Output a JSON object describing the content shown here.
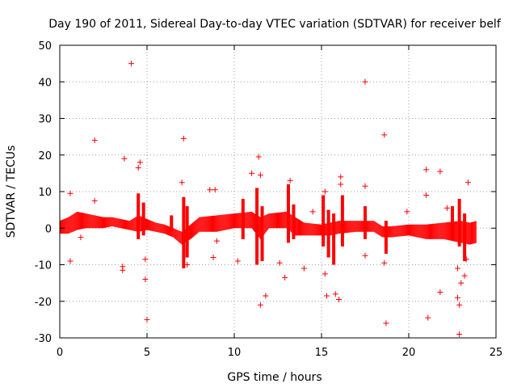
{
  "chart_data": {
    "type": "scatter",
    "title": "Day 190 of 2011, Sidereal Day-to-day VTEC variation (SDTVAR) for receiver belf",
    "xlabel": "GPS time / hours",
    "ylabel": "SDTVAR / TECUs",
    "xlim": [
      0,
      25
    ],
    "ylim": [
      -30,
      50
    ],
    "xticks": [
      0,
      5,
      10,
      15,
      20,
      25
    ],
    "yticks": [
      -30,
      -20,
      -10,
      0,
      10,
      20,
      30,
      40,
      50
    ],
    "grid": true,
    "marker": "+",
    "color": "#ff0000",
    "dense_band": [
      {
        "x": 0.0,
        "lo": -1.5,
        "hi": 2.0
      },
      {
        "x": 0.5,
        "lo": -1.5,
        "hi": 3.0
      },
      {
        "x": 1.0,
        "lo": -0.5,
        "hi": 4.5
      },
      {
        "x": 1.5,
        "lo": 0.0,
        "hi": 4.0
      },
      {
        "x": 2.0,
        "lo": 0.0,
        "hi": 3.5
      },
      {
        "x": 2.5,
        "lo": 0.0,
        "hi": 3.0
      },
      {
        "x": 3.0,
        "lo": 0.5,
        "hi": 3.0
      },
      {
        "x": 3.5,
        "lo": 0.0,
        "hi": 2.5
      },
      {
        "x": 4.0,
        "lo": -0.5,
        "hi": 2.0
      },
      {
        "x": 4.5,
        "lo": -1.0,
        "hi": 3.5
      },
      {
        "x": 5.0,
        "lo": -0.5,
        "hi": 2.5
      },
      {
        "x": 5.5,
        "lo": -1.0,
        "hi": 1.5
      },
      {
        "x": 6.0,
        "lo": -1.5,
        "hi": 1.0
      },
      {
        "x": 6.5,
        "lo": -2.5,
        "hi": 0.0
      },
      {
        "x": 7.0,
        "lo": -4.5,
        "hi": -1.0
      },
      {
        "x": 7.5,
        "lo": -3.0,
        "hi": 1.0
      },
      {
        "x": 8.0,
        "lo": -1.0,
        "hi": 3.0
      },
      {
        "x": 9.0,
        "lo": -1.0,
        "hi": 3.5
      },
      {
        "x": 10.0,
        "lo": 0.0,
        "hi": 4.0
      },
      {
        "x": 11.0,
        "lo": 0.0,
        "hi": 4.5
      },
      {
        "x": 11.5,
        "lo": -3.0,
        "hi": 3.0
      },
      {
        "x": 12.0,
        "lo": 0.0,
        "hi": 4.0
      },
      {
        "x": 13.0,
        "lo": 0.0,
        "hi": 4.5
      },
      {
        "x": 13.5,
        "lo": -2.0,
        "hi": 3.0
      },
      {
        "x": 14.0,
        "lo": -2.0,
        "hi": 1.5
      },
      {
        "x": 15.0,
        "lo": -2.0,
        "hi": 1.0
      },
      {
        "x": 15.5,
        "lo": -2.0,
        "hi": 1.5
      },
      {
        "x": 16.0,
        "lo": -1.5,
        "hi": 2.0
      },
      {
        "x": 17.0,
        "lo": -1.0,
        "hi": 2.0
      },
      {
        "x": 18.0,
        "lo": -1.0,
        "hi": 2.0
      },
      {
        "x": 18.5,
        "lo": -2.5,
        "hi": 0.5
      },
      {
        "x": 19.0,
        "lo": -2.5,
        "hi": 0.5
      },
      {
        "x": 20.0,
        "lo": -2.0,
        "hi": 1.0
      },
      {
        "x": 21.0,
        "lo": -3.0,
        "hi": 1.0
      },
      {
        "x": 22.0,
        "lo": -3.0,
        "hi": 1.5
      },
      {
        "x": 23.0,
        "lo": -4.0,
        "hi": 2.0
      },
      {
        "x": 23.5,
        "lo": -4.5,
        "hi": 1.5
      },
      {
        "x": 23.9,
        "lo": -4.0,
        "hi": 2.0
      }
    ],
    "spikes": [
      {
        "x": 4.5,
        "lo": -3.0,
        "hi": 9.5
      },
      {
        "x": 4.8,
        "lo": -2.0,
        "hi": 7.0
      },
      {
        "x": 6.4,
        "lo": -1.0,
        "hi": 3.5
      },
      {
        "x": 7.1,
        "lo": -11.0,
        "hi": 8.5
      },
      {
        "x": 7.3,
        "lo": -8.0,
        "hi": 6.0
      },
      {
        "x": 10.5,
        "lo": -3.0,
        "hi": 8.0
      },
      {
        "x": 11.3,
        "lo": -10.0,
        "hi": 11.0
      },
      {
        "x": 11.6,
        "lo": -9.0,
        "hi": 6.0
      },
      {
        "x": 13.1,
        "lo": -4.0,
        "hi": 12.0
      },
      {
        "x": 13.4,
        "lo": -3.0,
        "hi": 6.5
      },
      {
        "x": 15.1,
        "lo": -5.0,
        "hi": 9.0
      },
      {
        "x": 15.4,
        "lo": -8.0,
        "hi": 5.0
      },
      {
        "x": 15.7,
        "lo": -10.0,
        "hi": 4.0
      },
      {
        "x": 16.2,
        "lo": -5.0,
        "hi": 9.0
      },
      {
        "x": 17.5,
        "lo": -3.0,
        "hi": 6.0
      },
      {
        "x": 18.7,
        "lo": -7.0,
        "hi": 2.0
      },
      {
        "x": 22.5,
        "lo": -3.0,
        "hi": 6.0
      },
      {
        "x": 22.9,
        "lo": -5.0,
        "hi": 8.0
      },
      {
        "x": 23.2,
        "lo": -9.0,
        "hi": 4.0
      }
    ],
    "outliers": [
      {
        "x": 4.1,
        "y": 45.0
      },
      {
        "x": 17.5,
        "y": 40.0
      },
      {
        "x": 18.6,
        "y": 25.5
      },
      {
        "x": 2.0,
        "y": 24.0
      },
      {
        "x": 7.1,
        "y": 24.5
      },
      {
        "x": 3.7,
        "y": 19.0
      },
      {
        "x": 4.6,
        "y": 18.0
      },
      {
        "x": 4.5,
        "y": 16.5
      },
      {
        "x": 11.4,
        "y": 19.5
      },
      {
        "x": 11.0,
        "y": 15.0
      },
      {
        "x": 11.5,
        "y": 14.5
      },
      {
        "x": 16.1,
        "y": 14.0
      },
      {
        "x": 16.1,
        "y": 12.0
      },
      {
        "x": 21.0,
        "y": 16.0
      },
      {
        "x": 21.8,
        "y": 15.5
      },
      {
        "x": 23.4,
        "y": 12.5
      },
      {
        "x": 7.0,
        "y": 12.5
      },
      {
        "x": 13.2,
        "y": 13.0
      },
      {
        "x": 8.6,
        "y": 10.5
      },
      {
        "x": 8.9,
        "y": 10.5
      },
      {
        "x": 21.0,
        "y": 9.0
      },
      {
        "x": 0.6,
        "y": 9.5
      },
      {
        "x": 2.0,
        "y": 7.5
      },
      {
        "x": 15.2,
        "y": 10.0
      },
      {
        "x": 17.5,
        "y": 11.5
      },
      {
        "x": 0.6,
        "y": -9.0
      },
      {
        "x": 3.6,
        "y": -10.5
      },
      {
        "x": 3.6,
        "y": -11.5
      },
      {
        "x": 4.9,
        "y": -14.0
      },
      {
        "x": 4.9,
        "y": -8.5
      },
      {
        "x": 5.0,
        "y": -25.0
      },
      {
        "x": 7.3,
        "y": -10.0
      },
      {
        "x": 8.8,
        "y": -8.0
      },
      {
        "x": 10.2,
        "y": -9.0
      },
      {
        "x": 11.5,
        "y": -21.0
      },
      {
        "x": 11.8,
        "y": -18.5
      },
      {
        "x": 12.6,
        "y": -9.5
      },
      {
        "x": 12.9,
        "y": -13.5
      },
      {
        "x": 14.0,
        "y": -11.0
      },
      {
        "x": 15.2,
        "y": -12.5
      },
      {
        "x": 15.3,
        "y": -18.5
      },
      {
        "x": 15.8,
        "y": -18.0
      },
      {
        "x": 16.0,
        "y": -19.5
      },
      {
        "x": 17.5,
        "y": -7.5
      },
      {
        "x": 18.7,
        "y": -26.0
      },
      {
        "x": 18.6,
        "y": -9.5
      },
      {
        "x": 21.1,
        "y": -24.5
      },
      {
        "x": 21.8,
        "y": -17.5
      },
      {
        "x": 22.8,
        "y": -19.0
      },
      {
        "x": 22.9,
        "y": -21.0
      },
      {
        "x": 22.9,
        "y": -29.0
      },
      {
        "x": 23.0,
        "y": -15.0
      },
      {
        "x": 22.8,
        "y": -11.0
      },
      {
        "x": 23.2,
        "y": -13.0
      },
      {
        "x": 23.3,
        "y": -8.5
      },
      {
        "x": 1.2,
        "y": -2.5
      },
      {
        "x": 9.0,
        "y": -3.5
      },
      {
        "x": 19.9,
        "y": 4.5
      },
      {
        "x": 22.2,
        "y": 5.5
      },
      {
        "x": 14.5,
        "y": 4.5
      }
    ]
  }
}
